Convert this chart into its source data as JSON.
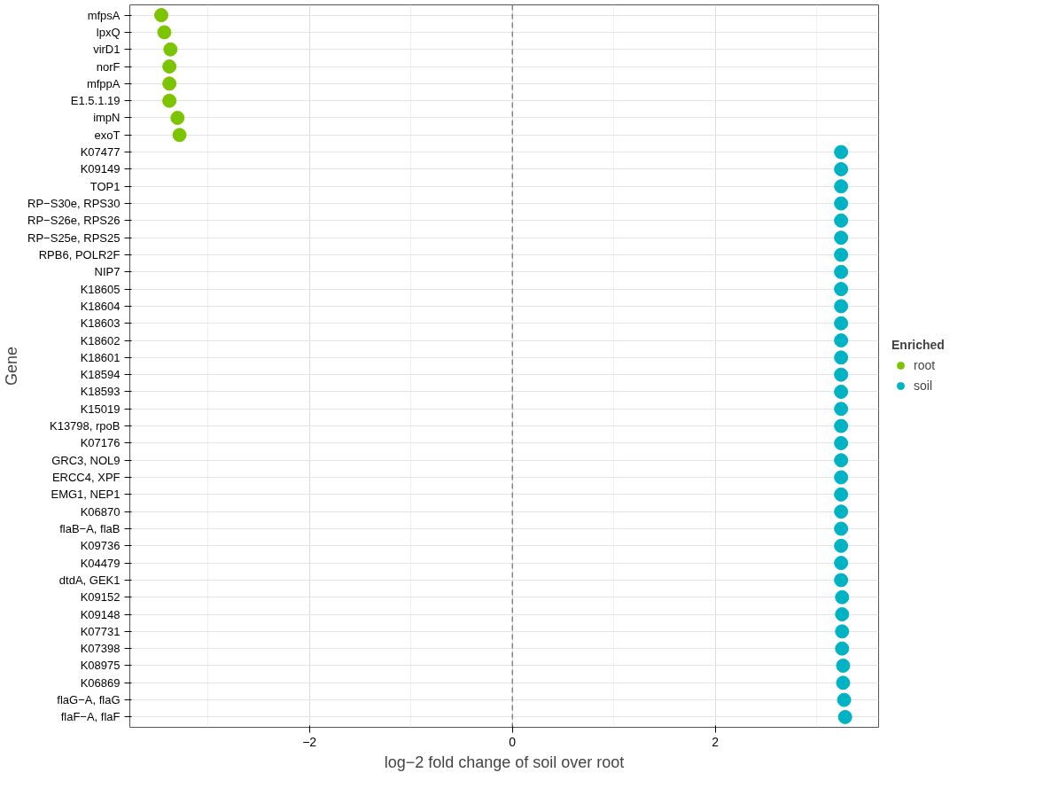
{
  "chart_data": {
    "type": "scatter",
    "orientation": "horizontal",
    "xlabel": "log−2 fold change of soil over root",
    "ylabel": "Gene",
    "legend_title": "Enriched",
    "legend": "right",
    "grid": true,
    "marker": "circle",
    "categories": [
      "mfpsA",
      "lpxQ",
      "virD1",
      "norF",
      "mfppA",
      "E1.5.1.19",
      "impN",
      "exoT",
      "K07477",
      "K09149",
      "TOP1",
      "RP−S30e, RPS30",
      "RP−S26e, RPS26",
      "RP−S25e, RPS25",
      "RPB6, POLR2F",
      "NIP7",
      "K18605",
      "K18604",
      "K18603",
      "K18602",
      "K18601",
      "K18594",
      "K18593",
      "K15019",
      "K13798, rpoB",
      "K07176",
      "GRC3, NOL9",
      "ERCC4, XPF",
      "EMG1, NEP1",
      "K06870",
      "flaB−A, flaB",
      "K09736",
      "K04479",
      "dtdA, GEK1",
      "K09152",
      "K09148",
      "K07731",
      "K07398",
      "K08975",
      "K06869",
      "flaG−A, flaG",
      "flaF−A, flaF"
    ],
    "xlim": [
      -3.77,
      3.61
    ],
    "xticks": [
      {
        "value": -2,
        "label": "−2"
      },
      0,
      2
    ],
    "ref_lines": [
      {
        "axis": "x",
        "value": 0,
        "color": "#555555",
        "line_style": "dashed"
      }
    ],
    "series": [
      {
        "name": "root",
        "color": "#7cc400",
        "values": [
          -3.46,
          -3.43,
          -3.37,
          -3.38,
          -3.38,
          -3.38,
          -3.3,
          -3.28,
          null,
          null,
          null,
          null,
          null,
          null,
          null,
          null,
          null,
          null,
          null,
          null,
          null,
          null,
          null,
          null,
          null,
          null,
          null,
          null,
          null,
          null,
          null,
          null,
          null,
          null,
          null,
          null,
          null,
          null,
          null,
          null,
          null,
          null
        ]
      },
      {
        "name": "soil",
        "color": "#00b3c4",
        "values": [
          null,
          null,
          null,
          null,
          null,
          null,
          null,
          null,
          3.24,
          3.24,
          3.24,
          3.24,
          3.24,
          3.24,
          3.24,
          3.24,
          3.24,
          3.24,
          3.24,
          3.24,
          3.24,
          3.24,
          3.24,
          3.24,
          3.24,
          3.24,
          3.24,
          3.24,
          3.24,
          3.24,
          3.24,
          3.24,
          3.24,
          3.24,
          3.25,
          3.25,
          3.25,
          3.25,
          3.26,
          3.26,
          3.27,
          3.28
        ]
      }
    ]
  }
}
